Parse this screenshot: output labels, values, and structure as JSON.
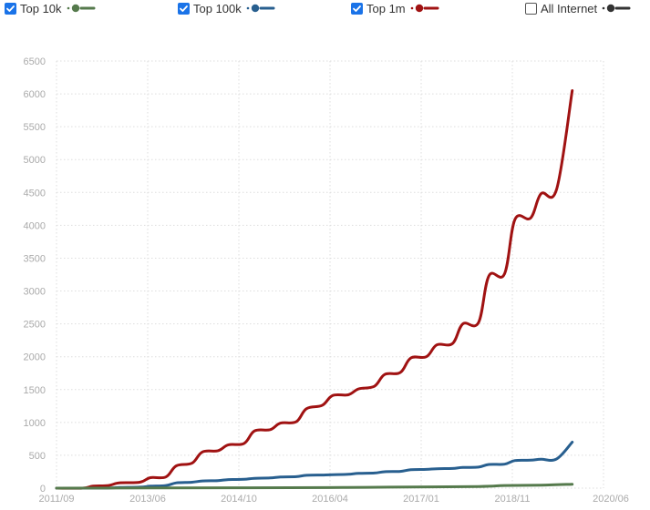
{
  "legend": [
    {
      "label": "Top 10k",
      "checked": true,
      "color": "#557a4c"
    },
    {
      "label": "Top 100k",
      "checked": true,
      "color": "#285f8f"
    },
    {
      "label": "Top 1m",
      "checked": true,
      "color": "#a01212"
    },
    {
      "label": "All Internet",
      "checked": false,
      "color": "#333333"
    }
  ],
  "chart_data": {
    "type": "line",
    "grid": true,
    "ylim": [
      0,
      6500
    ],
    "y_ticks": [
      0,
      500,
      1000,
      1500,
      2000,
      2500,
      3000,
      3500,
      4000,
      4500,
      5000,
      5500,
      6000,
      6500
    ],
    "x_tick_labels": [
      "2011/09",
      "2013/06",
      "2014/10",
      "2016/04",
      "2017/01",
      "2018/11",
      "2020/06"
    ],
    "x_range": [
      "2011-09",
      "2020-06"
    ],
    "series": [
      {
        "name": "Top 1m",
        "color": "#a01212",
        "points": [
          [
            "2011-09",
            0
          ],
          [
            "2012-02",
            0
          ],
          [
            "2012-04",
            30
          ],
          [
            "2012-07",
            40
          ],
          [
            "2012-09",
            80
          ],
          [
            "2013-01",
            90
          ],
          [
            "2013-03",
            160
          ],
          [
            "2013-06",
            170
          ],
          [
            "2013-08",
            340
          ],
          [
            "2013-11",
            380
          ],
          [
            "2014-01",
            550
          ],
          [
            "2014-04",
            570
          ],
          [
            "2014-06",
            660
          ],
          [
            "2014-09",
            680
          ],
          [
            "2014-11",
            870
          ],
          [
            "2015-02",
            890
          ],
          [
            "2015-04",
            990
          ],
          [
            "2015-07",
            1010
          ],
          [
            "2015-09",
            1210
          ],
          [
            "2015-12",
            1260
          ],
          [
            "2016-02",
            1410
          ],
          [
            "2016-05",
            1420
          ],
          [
            "2016-07",
            1510
          ],
          [
            "2016-10",
            1550
          ],
          [
            "2016-12",
            1730
          ],
          [
            "2017-03",
            1760
          ],
          [
            "2017-05",
            1980
          ],
          [
            "2017-08",
            2000
          ],
          [
            "2017-10",
            2180
          ],
          [
            "2018-01",
            2200
          ],
          [
            "2018-03",
            2500
          ],
          [
            "2018-06",
            2520
          ],
          [
            "2018-08",
            3230
          ],
          [
            "2018-11",
            3260
          ],
          [
            "2019-01",
            4090
          ],
          [
            "2019-04",
            4110
          ],
          [
            "2019-06",
            4480
          ],
          [
            "2019-09",
            4550
          ],
          [
            "2019-12",
            6050
          ]
        ]
      },
      {
        "name": "Top 100k",
        "color": "#285f8f",
        "points": [
          [
            "2011-09",
            0
          ],
          [
            "2012-06",
            0
          ],
          [
            "2012-09",
            10
          ],
          [
            "2013-01",
            15
          ],
          [
            "2013-03",
            30
          ],
          [
            "2013-06",
            40
          ],
          [
            "2013-08",
            80
          ],
          [
            "2013-11",
            90
          ],
          [
            "2014-01",
            110
          ],
          [
            "2014-04",
            115
          ],
          [
            "2014-06",
            130
          ],
          [
            "2014-09",
            135
          ],
          [
            "2014-11",
            150
          ],
          [
            "2015-02",
            155
          ],
          [
            "2015-04",
            170
          ],
          [
            "2015-07",
            175
          ],
          [
            "2015-09",
            195
          ],
          [
            "2015-12",
            200
          ],
          [
            "2016-02",
            205
          ],
          [
            "2016-05",
            210
          ],
          [
            "2016-07",
            225
          ],
          [
            "2016-10",
            230
          ],
          [
            "2016-12",
            250
          ],
          [
            "2017-03",
            255
          ],
          [
            "2017-05",
            280
          ],
          [
            "2017-08",
            285
          ],
          [
            "2017-10",
            295
          ],
          [
            "2018-01",
            300
          ],
          [
            "2018-03",
            315
          ],
          [
            "2018-06",
            320
          ],
          [
            "2018-08",
            360
          ],
          [
            "2018-11",
            365
          ],
          [
            "2019-01",
            420
          ],
          [
            "2019-04",
            425
          ],
          [
            "2019-06",
            440
          ],
          [
            "2019-09",
            445
          ],
          [
            "2019-12",
            700
          ]
        ]
      },
      {
        "name": "Top 10k",
        "color": "#557a4c",
        "points": [
          [
            "2011-09",
            0
          ],
          [
            "2014-10",
            5
          ],
          [
            "2016-04",
            10
          ],
          [
            "2017-01",
            15
          ],
          [
            "2018-06",
            25
          ],
          [
            "2018-11",
            40
          ],
          [
            "2019-06",
            45
          ],
          [
            "2019-12",
            60
          ]
        ]
      }
    ]
  }
}
